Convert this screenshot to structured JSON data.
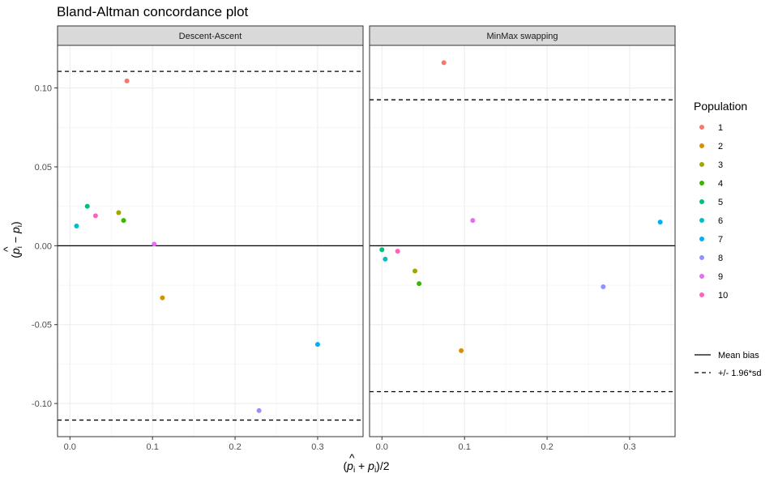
{
  "chart_data": {
    "type": "scatter",
    "title": "Bland-Altman concordance plot",
    "xlabel": "(p̂ᵢ + pᵢ)/2",
    "ylabel": "(p̂ᵢ − pᵢ)",
    "xlim": [
      -0.015,
      0.355
    ],
    "ylim": [
      -0.121,
      0.127
    ],
    "x_ticks": [
      0.0,
      0.1,
      0.2,
      0.3
    ],
    "x_tick_labels": [
      "0.0",
      "0.1",
      "0.2",
      "0.3"
    ],
    "y_ticks": [
      0.1,
      0.05,
      0.0,
      -0.05,
      -0.1
    ],
    "y_tick_labels": [
      "0.10",
      "0.05",
      "0.00",
      "-0.05",
      "-0.10"
    ],
    "grid": true,
    "legend_position": "right",
    "panels": [
      {
        "name": "Descent-Ascent",
        "mean_bias": 0.0,
        "limits": [
          0.1105,
          -0.1105
        ],
        "points": [
          {
            "population": "1",
            "x": 0.069,
            "y": 0.1045
          },
          {
            "population": "2",
            "x": 0.112,
            "y": -0.033
          },
          {
            "population": "3",
            "x": 0.059,
            "y": 0.021
          },
          {
            "population": "4",
            "x": 0.065,
            "y": 0.016
          },
          {
            "population": "5",
            "x": 0.021,
            "y": 0.025
          },
          {
            "population": "6",
            "x": 0.008,
            "y": 0.0125
          },
          {
            "population": "7",
            "x": 0.3,
            "y": -0.0625
          },
          {
            "population": "8",
            "x": 0.229,
            "y": -0.1045
          },
          {
            "population": "9",
            "x": 0.102,
            "y": 0.001
          },
          {
            "population": "10",
            "x": 0.031,
            "y": 0.019
          }
        ]
      },
      {
        "name": "MinMax swapping",
        "mean_bias": 0.0,
        "limits": [
          0.0925,
          -0.0925
        ],
        "points": [
          {
            "population": "1",
            "x": 0.075,
            "y": 0.116
          },
          {
            "population": "2",
            "x": 0.096,
            "y": -0.0665
          },
          {
            "population": "3",
            "x": 0.04,
            "y": -0.016
          },
          {
            "population": "4",
            "x": 0.045,
            "y": -0.024
          },
          {
            "population": "5",
            "x": 0.0,
            "y": -0.0025
          },
          {
            "population": "6",
            "x": 0.004,
            "y": -0.0085
          },
          {
            "population": "7",
            "x": 0.337,
            "y": 0.015
          },
          {
            "population": "8",
            "x": 0.268,
            "y": -0.026
          },
          {
            "population": "9",
            "x": 0.11,
            "y": 0.016
          },
          {
            "population": "10",
            "x": 0.019,
            "y": -0.0035
          }
        ]
      }
    ],
    "legend": {
      "title": "Population",
      "populations": [
        {
          "label": "1",
          "color": "#F8766D"
        },
        {
          "label": "2",
          "color": "#D89000"
        },
        {
          "label": "3",
          "color": "#A3A500"
        },
        {
          "label": "4",
          "color": "#39B600"
        },
        {
          "label": "5",
          "color": "#00BF7D"
        },
        {
          "label": "6",
          "color": "#00BFC4"
        },
        {
          "label": "7",
          "color": "#00B0F6"
        },
        {
          "label": "8",
          "color": "#9590FF"
        },
        {
          "label": "9",
          "color": "#E76BF3"
        },
        {
          "label": "10",
          "color": "#FF62BC"
        }
      ],
      "lines": [
        {
          "label": "Mean bias",
          "style": "solid"
        },
        {
          "label": "+/- 1.96*sd",
          "style": "dashed"
        }
      ]
    }
  }
}
